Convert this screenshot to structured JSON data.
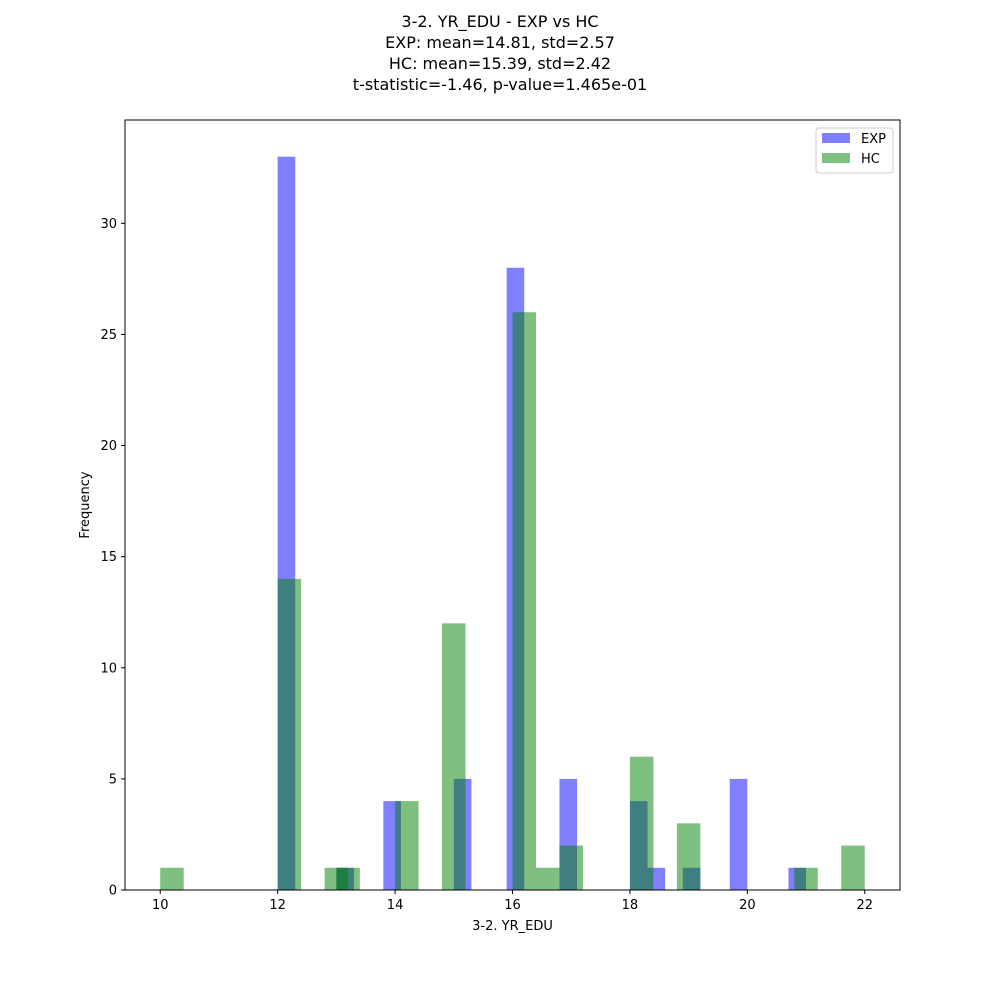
{
  "chart_data": {
    "type": "bar",
    "title_lines": [
      "3-2. YR_EDU - EXP vs HC",
      "EXP: mean=14.81, std=2.57",
      "HC: mean=15.39, std=2.42",
      "t-statistic=-1.46, p-value=1.465e-01"
    ],
    "xlabel": "3-2. YR_EDU",
    "ylabel": "Frequency",
    "xlim": [
      9.4,
      22.6
    ],
    "ylim": [
      0,
      34.65
    ],
    "xticks": [
      10,
      12,
      14,
      16,
      18,
      20,
      22
    ],
    "yticks": [
      0,
      5,
      10,
      15,
      20,
      25,
      30
    ],
    "legend_position": "top-right",
    "series": [
      {
        "name": "EXP",
        "color": "#0000ff",
        "alpha": 0.5,
        "bin_width": 0.3,
        "bins": [
          {
            "x0": 12.0,
            "count": 33
          },
          {
            "x0": 13.0,
            "count": 1
          },
          {
            "x0": 13.8,
            "count": 4
          },
          {
            "x0": 15.0,
            "count": 5
          },
          {
            "x0": 15.9,
            "count": 28
          },
          {
            "x0": 16.8,
            "count": 5
          },
          {
            "x0": 18.0,
            "count": 4
          },
          {
            "x0": 18.3,
            "count": 1
          },
          {
            "x0": 18.9,
            "count": 1
          },
          {
            "x0": 19.7,
            "count": 5
          },
          {
            "x0": 20.7,
            "count": 1
          }
        ]
      },
      {
        "name": "HC",
        "color": "#008000",
        "alpha": 0.5,
        "bin_width": 0.4,
        "bins": [
          {
            "x0": 10.0,
            "count": 1
          },
          {
            "x0": 12.0,
            "count": 14
          },
          {
            "x0": 12.8,
            "count": 1
          },
          {
            "x0": 13.0,
            "count": 1
          },
          {
            "x0": 14.0,
            "count": 4
          },
          {
            "x0": 14.8,
            "count": 12
          },
          {
            "x0": 16.0,
            "count": 26
          },
          {
            "x0": 16.4,
            "count": 1
          },
          {
            "x0": 16.8,
            "count": 2
          },
          {
            "x0": 18.0,
            "count": 6
          },
          {
            "x0": 18.8,
            "count": 3
          },
          {
            "x0": 20.8,
            "count": 1
          },
          {
            "x0": 21.6,
            "count": 2
          }
        ]
      }
    ]
  }
}
